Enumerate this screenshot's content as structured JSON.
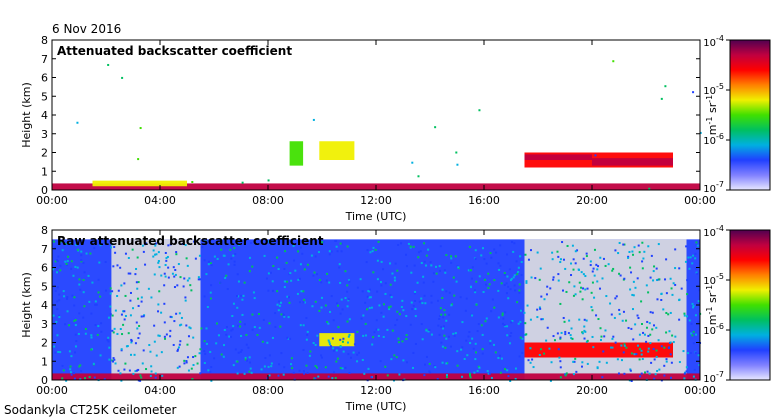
{
  "date": "6 Nov 2016",
  "footer": "Sodankyla CT25K ceilometer",
  "colorbar": {
    "unit_main": "m",
    "unit_exp1": "-1",
    "unit_mid": " sr",
    "unit_exp2": "-1",
    "colors": [
      "#e8e8ff",
      "#8080ff",
      "#2040ff",
      "#00b0e0",
      "#00c060",
      "#40e000",
      "#f0f000",
      "#ff8000",
      "#ff0000",
      "#c00040",
      "#500050"
    ]
  },
  "chart_data": [
    {
      "type": "heatmap",
      "title": "Attenuated backscatter coefficient",
      "xlabel": "Time (UTC)",
      "ylabel": "Height (km)",
      "xlim": [
        "00:00",
        "24:00"
      ],
      "ylim": [
        0,
        8
      ],
      "x_ticks": [
        "00:00",
        "04:00",
        "08:00",
        "12:00",
        "16:00",
        "20:00",
        "00:00"
      ],
      "y_ticks": [
        "0",
        "1",
        "2",
        "3",
        "4",
        "5",
        "6",
        "7",
        "8"
      ],
      "colorbar_ticks": [
        {
          "mant": "10",
          "exp": "-4"
        },
        {
          "mant": "10",
          "exp": "-5"
        },
        {
          "mant": "10",
          "exp": "-6"
        },
        {
          "mant": "10",
          "exp": "-7"
        }
      ],
      "colorbar_range": [
        1e-07,
        0.0001
      ],
      "colorbar_scale": "log",
      "features": [
        {
          "name": "surface layer",
          "t_start": 0.0,
          "t_end": 24.0,
          "h_bottom": 0.0,
          "h_top": 0.35,
          "level": 0.85
        },
        {
          "name": "boundary layer",
          "t_start": 1.5,
          "t_end": 5.0,
          "h_bottom": 0.2,
          "h_top": 0.5,
          "level": 0.55
        },
        {
          "name": "mid-level cloud",
          "t_start": 8.8,
          "t_end": 9.3,
          "h_bottom": 1.3,
          "h_top": 2.6,
          "level": 0.5
        },
        {
          "name": "mid-level cloud",
          "t_start": 9.9,
          "t_end": 11.2,
          "h_bottom": 1.6,
          "h_top": 2.6,
          "level": 0.55
        },
        {
          "name": "low cloud",
          "t_start": 17.5,
          "t_end": 23.0,
          "h_bottom": 1.2,
          "h_top": 2.0,
          "level": 0.75
        },
        {
          "name": "cloud top layer",
          "t_start": 17.5,
          "t_end": 20.0,
          "h_bottom": 1.6,
          "h_top": 1.9,
          "level": 0.9
        },
        {
          "name": "cloud top layer",
          "t_start": 20.0,
          "t_end": 23.0,
          "h_bottom": 1.3,
          "h_top": 1.7,
          "level": 0.9
        }
      ]
    },
    {
      "type": "heatmap",
      "title": "Raw attenuated backscatter coefficient",
      "xlabel": "Time (UTC)",
      "ylabel": "Height (km)",
      "xlim": [
        "00:00",
        "24:00"
      ],
      "ylim": [
        0,
        8
      ],
      "x_ticks": [
        "00:00",
        "04:00",
        "08:00",
        "12:00",
        "16:00",
        "20:00",
        "00:00"
      ],
      "y_ticks": [
        "0",
        "1",
        "2",
        "3",
        "4",
        "5",
        "6",
        "7",
        "8"
      ],
      "colorbar_ticks": [
        {
          "mant": "10",
          "exp": "-4"
        },
        {
          "mant": "10",
          "exp": "-5"
        },
        {
          "mant": "10",
          "exp": "-6"
        },
        {
          "mant": "10",
          "exp": "-7"
        }
      ],
      "colorbar_range": [
        1e-07,
        0.0001
      ],
      "colorbar_scale": "log",
      "features": [
        {
          "name": "noise background",
          "t_start": 0.0,
          "t_end": 24.0,
          "h_bottom": 0.0,
          "h_top": 7.5,
          "level": 0.2
        },
        {
          "name": "low-signal gap",
          "t_start": 2.2,
          "t_end": 5.5,
          "h_bottom": 0.0,
          "h_top": 7.5,
          "level": 0.0
        },
        {
          "name": "low-signal gap",
          "t_start": 17.5,
          "t_end": 23.5,
          "h_bottom": 0.0,
          "h_top": 7.5,
          "level": 0.0
        },
        {
          "name": "surface layer",
          "t_start": 0.0,
          "t_end": 24.0,
          "h_bottom": 0.0,
          "h_top": 0.35,
          "level": 0.85
        },
        {
          "name": "mid-level cloud",
          "t_start": 9.9,
          "t_end": 11.2,
          "h_bottom": 1.8,
          "h_top": 2.5,
          "level": 0.55
        },
        {
          "name": "low cloud",
          "t_start": 17.5,
          "t_end": 23.0,
          "h_bottom": 1.2,
          "h_top": 2.0,
          "level": 0.75
        }
      ]
    }
  ]
}
